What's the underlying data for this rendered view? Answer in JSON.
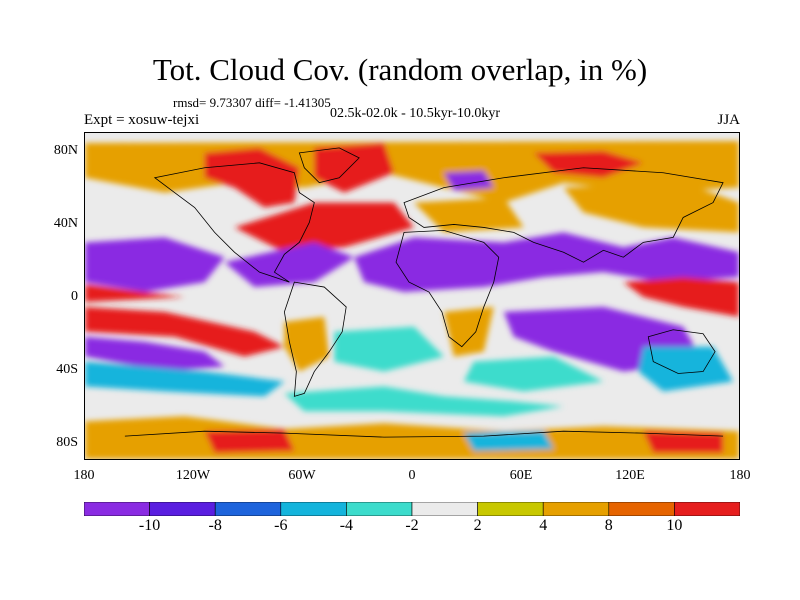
{
  "title": "Tot. Cloud Cov. (random overlap, in %)",
  "stats_text": "rmsd= 9.73307 diff= -1.41305",
  "experiment": "Expt = xosuw-tejxi",
  "period": "02.5k-02.0k - 10.5kyr-10.0kyr",
  "season": "JJA",
  "lat_labels": [
    "80N",
    "40N",
    "0",
    "40S",
    "80S"
  ],
  "lon_labels": [
    "180",
    "120W",
    "60W",
    "0",
    "60E",
    "120E",
    "180"
  ],
  "colorbar": {
    "labels": [
      "-10",
      "-8",
      "-6",
      "-4",
      "-2",
      "2",
      "4",
      "8",
      "10"
    ],
    "colors": [
      "#8a2be2",
      "#5a1ee0",
      "#1e64dc",
      "#14b4dc",
      "#3cdccc",
      "#ebebeb",
      "#c8c800",
      "#e6a000",
      "#e66400",
      "#e61e1e"
    ]
  }
}
